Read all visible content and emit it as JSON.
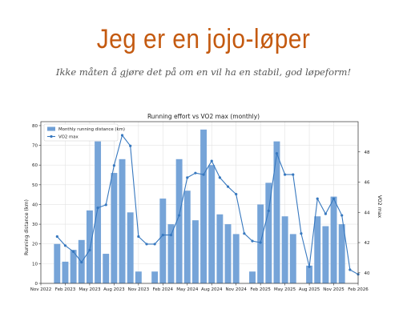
{
  "page": {
    "title": "Jeg er en jojo-løper",
    "subtitle": "Ikke måten å gjøre det på om en vil ha en stabil, god løpeform!"
  },
  "chart_data": {
    "type": "bar+line",
    "title": "Running effort vs VO2 max (monthly)",
    "ylabel": "Running distance (km)",
    "y2label": "VO2 max",
    "ylim": [
      0,
      82
    ],
    "yticks": [
      0,
      10,
      20,
      30,
      40,
      50,
      60,
      70,
      80
    ],
    "y2lim": [
      39.3,
      50.0
    ],
    "y2ticks": [
      40,
      42,
      44,
      46,
      48
    ],
    "xlim": [
      0,
      39
    ],
    "xticks": [
      {
        "t": 0,
        "label": "Nov 2022"
      },
      {
        "t": 3,
        "label": "Feb 2023"
      },
      {
        "t": 6,
        "label": "May 2023"
      },
      {
        "t": 9,
        "label": "Aug 2023"
      },
      {
        "t": 12,
        "label": "Nov 2023"
      },
      {
        "t": 15,
        "label": "Feb 2024"
      },
      {
        "t": 18,
        "label": "May 2024"
      },
      {
        "t": 21,
        "label": "Aug 2024"
      },
      {
        "t": 24,
        "label": "Nov 2024"
      },
      {
        "t": 27,
        "label": "Feb 2025"
      },
      {
        "t": 30,
        "label": "May 2025"
      },
      {
        "t": 33,
        "label": "Aug 2025"
      },
      {
        "t": 36,
        "label": "Nov 2025"
      },
      {
        "t": 39,
        "label": "Feb 2026"
      }
    ],
    "legend": {
      "placement": "top-left",
      "bar": "Monthly running distance (km)",
      "line": "VO2 max"
    },
    "grid": true,
    "colors": {
      "bars": "#6f9fd6",
      "line": "#3778bf"
    },
    "series": [
      {
        "name": "Monthly running distance (km)",
        "kind": "bar",
        "x": [
          2,
          3,
          4,
          5,
          6,
          7,
          8,
          9,
          10,
          11,
          12,
          14,
          15,
          16,
          17,
          18,
          19,
          20,
          21,
          22,
          23,
          24,
          26,
          27,
          28,
          29,
          30,
          31,
          33,
          34,
          35,
          36,
          37
        ],
        "values": [
          20,
          11,
          17,
          22,
          37,
          72,
          15,
          56,
          63,
          36,
          6,
          6,
          43,
          30,
          63,
          47,
          32,
          78,
          60,
          35,
          30,
          25,
          6,
          40,
          51,
          72,
          34,
          25,
          9,
          34,
          29,
          44,
          30
        ]
      },
      {
        "name": "VO2 max",
        "kind": "line",
        "x": [
          2,
          3,
          4,
          5,
          6,
          7,
          8,
          9,
          10,
          11,
          12,
          13,
          14,
          15,
          16,
          17,
          18,
          19,
          20,
          21,
          22,
          23,
          24,
          25,
          26,
          27,
          28,
          29,
          30,
          31,
          32,
          33,
          34,
          35,
          36,
          37,
          38,
          39
        ],
        "values": [
          42.4,
          41.8,
          41.4,
          40.7,
          41.5,
          44.3,
          44.5,
          47.1,
          49.1,
          48.4,
          42.4,
          41.9,
          41.9,
          42.5,
          42.5,
          43.8,
          46.3,
          46.6,
          46.5,
          47.4,
          46.3,
          45.7,
          45.2,
          42.6,
          42.1,
          42.0,
          44.1,
          47.9,
          46.5,
          46.5,
          42.6,
          40.4,
          44.9,
          43.9,
          44.9,
          43.8,
          40.2,
          39.9
        ]
      }
    ]
  }
}
